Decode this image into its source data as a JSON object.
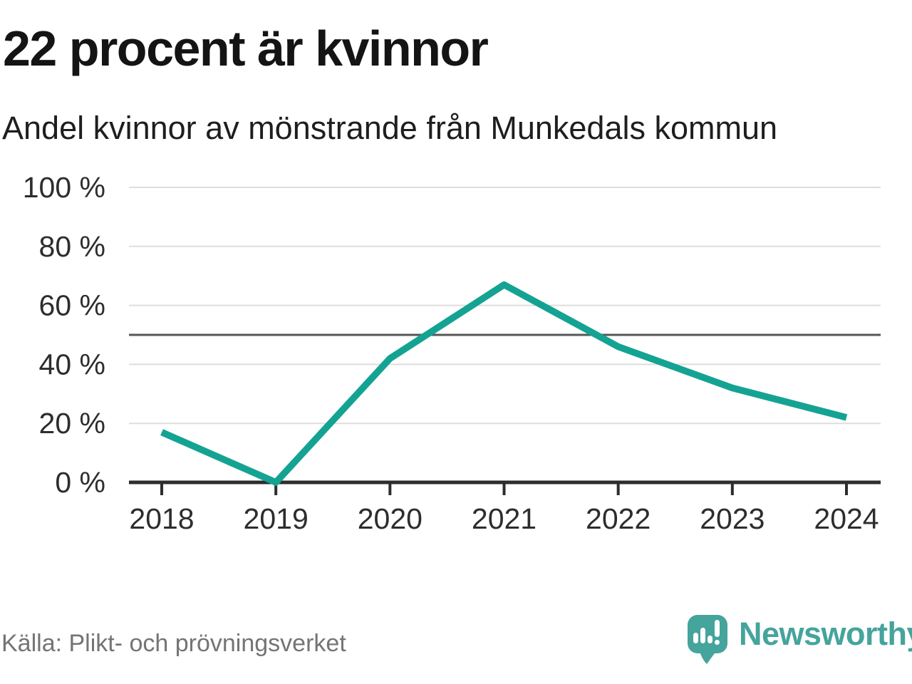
{
  "header": {
    "title": "22 procent är kvinnor",
    "subtitle": "Andel kvinnor av mönstrande från Munkedals kommun"
  },
  "chart_data": {
    "type": "line",
    "title": "22 procent är kvinnor",
    "subtitle": "Andel kvinnor av mönstrande från Munkedals kommun",
    "x": [
      "2018",
      "2019",
      "2020",
      "2021",
      "2022",
      "2023",
      "2024"
    ],
    "series": [
      {
        "name": "Andel kvinnor av mönstrande",
        "values": [
          17,
          0,
          42,
          67,
          46,
          32,
          22
        ]
      }
    ],
    "unit": "%",
    "xlabel": "",
    "ylabel": "",
    "ylim": [
      0,
      100
    ],
    "yticks": [
      0,
      20,
      40,
      60,
      80,
      100
    ],
    "ytick_suffix": " %",
    "reference_line": 50,
    "grid": true,
    "legend_position": "none"
  },
  "footer": {
    "source": "Källa: Plikt- och prövningsverket",
    "brand": "Newsworthy",
    "logo_icon": "speech-bubble-bar-chart-icon"
  },
  "colors": {
    "accent": "#14a392",
    "logo": "#45a49c",
    "grid": "#dedede",
    "reference": "#565656",
    "axis": "#2d2d2d",
    "title_text": "#141414",
    "subtitle_text": "#1e1e1e",
    "tick_text": "#2d2d2d",
    "muted_text": "#747474",
    "background": "#ffffff"
  }
}
